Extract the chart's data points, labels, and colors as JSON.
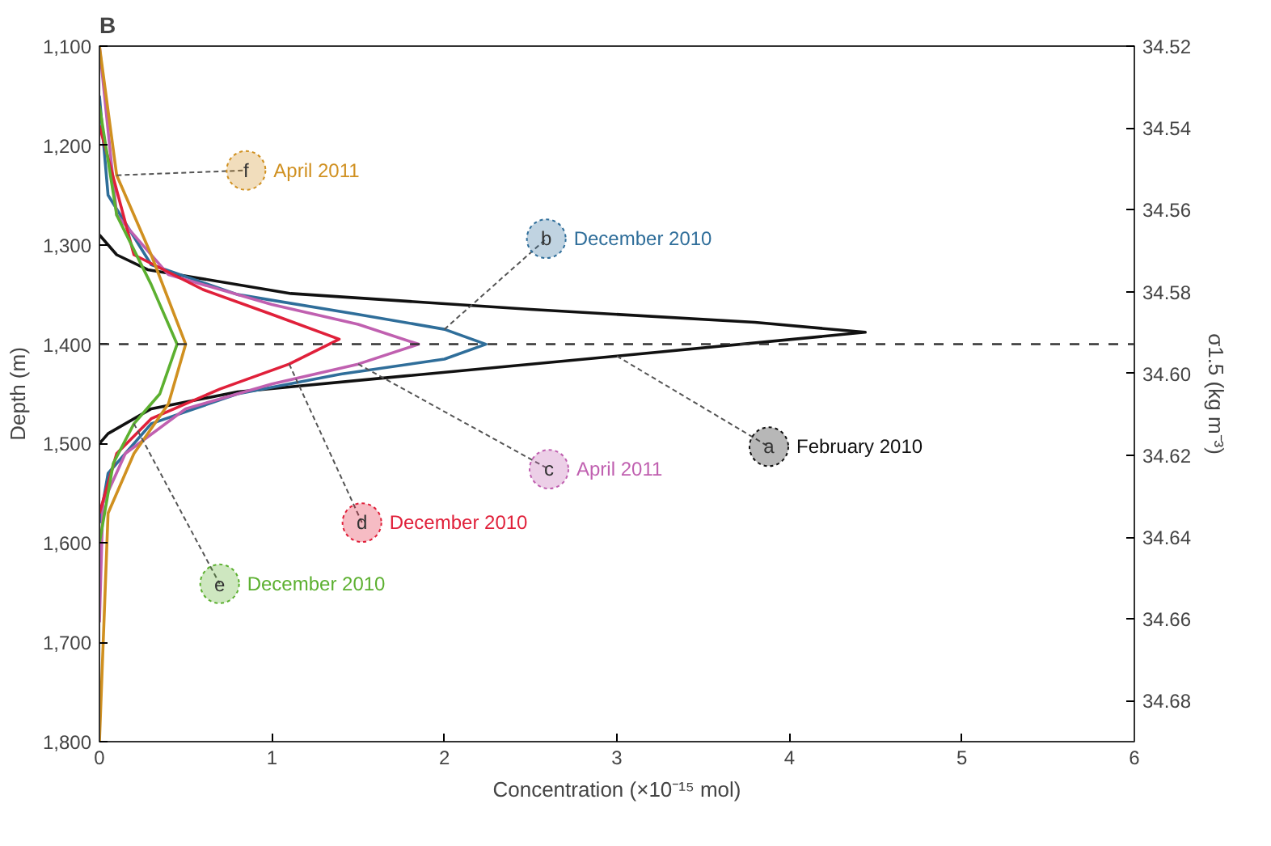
{
  "chart_data": {
    "type": "line",
    "title": "B",
    "xlabel": "Concentration (×10⁻¹⁵ mol)",
    "ylabel": "Depth (m)",
    "y2label": "σ1.5 (kg m⁻³)",
    "xlim": [
      0,
      6
    ],
    "xticks": [
      0,
      1,
      2,
      3,
      4,
      5,
      6
    ],
    "ylim": [
      1800,
      1100
    ],
    "yticks": [
      {
        "value": 1100,
        "label": "1,100"
      },
      {
        "value": 1200,
        "label": "1,200"
      },
      {
        "value": 1300,
        "label": "1,300"
      },
      {
        "value": 1400,
        "label": "1,400"
      },
      {
        "value": 1500,
        "label": "1,500"
      },
      {
        "value": 1600,
        "label": "1,600"
      },
      {
        "value": 1700,
        "label": "1,700"
      },
      {
        "value": 1800,
        "label": "1,800"
      }
    ],
    "y2lim": [
      34.69,
      34.52
    ],
    "y2ticks": [
      34.52,
      34.54,
      34.56,
      34.58,
      {
        "value": 34.6,
        "label": "34.60"
      },
      34.62,
      34.64,
      34.66,
      34.68
    ],
    "grid": false,
    "legend": "center",
    "marker": "none",
    "line_style": "solid",
    "ref_lines": [
      {
        "axis": "y",
        "value": 1400,
        "line_style": "dashed",
        "color": "#333333"
      }
    ],
    "series": [
      {
        "name": "February 2010",
        "color": "#111111",
        "x": [
          0,
          0.1,
          0.28,
          1.11,
          2.5,
          3.8,
          4.44,
          3.0,
          1.77,
          0.8,
          0.3,
          0.05,
          0
        ],
        "values": [
          1290,
          1310,
          1325,
          1349,
          1365,
          1378,
          1388,
          1412,
          1432,
          1448,
          1465,
          1490,
          1500
        ]
      },
      {
        "name": "December 2010",
        "color": "#2f6e9a",
        "x": [
          0,
          0.05,
          0.3,
          0.8,
          1.5,
          2.0,
          2.24,
          2.0,
          1.4,
          0.8,
          0.3,
          0.05,
          0
        ],
        "values": [
          1150,
          1250,
          1320,
          1350,
          1370,
          1385,
          1400,
          1415,
          1430,
          1450,
          1480,
          1530,
          1580
        ]
      },
      {
        "name": "April 2011",
        "color": "#c060b0",
        "x": [
          0,
          0.1,
          0.4,
          1.0,
          1.5,
          1.85,
          1.5,
          1.0,
          0.5,
          0.15,
          0.02,
          0
        ],
        "values": [
          1100,
          1270,
          1330,
          1360,
          1380,
          1400,
          1420,
          1440,
          1465,
          1510,
          1560,
          1680
        ]
      },
      {
        "name": "December 2010",
        "color": "#e0203a",
        "x": [
          0,
          0.2,
          0.6,
          1.0,
          1.39,
          1.1,
          0.7,
          0.3,
          0.1,
          0
        ],
        "values": [
          1180,
          1310,
          1345,
          1370,
          1395,
          1420,
          1445,
          1475,
          1510,
          1570
        ]
      },
      {
        "name": "December 2010",
        "color": "#5cb030",
        "x": [
          0,
          0.1,
          0.3,
          0.45,
          0.35,
          0.2,
          0.08,
          0
        ],
        "values": [
          1160,
          1270,
          1340,
          1400,
          1450,
          1480,
          1520,
          1600
        ]
      },
      {
        "name": "April 2011",
        "color": "#d09020",
        "x": [
          0,
          0.1,
          0.3,
          0.5,
          0.4,
          0.2,
          0.05,
          0
        ],
        "values": [
          1100,
          1230,
          1310,
          1400,
          1460,
          1510,
          1570,
          1800
        ]
      }
    ],
    "annotations": [
      {
        "text": "a",
        "x": 3.0,
        "y": 1412
      },
      {
        "text": "b",
        "x": 2.0,
        "y": 1385
      },
      {
        "text": "c",
        "x": 1.5,
        "y": 1420
      },
      {
        "text": "d",
        "x": 1.1,
        "y": 1420
      },
      {
        "text": "e",
        "x": 0.2,
        "y": 1480
      },
      {
        "text": "f",
        "x": 0.1,
        "y": 1230
      }
    ]
  }
}
